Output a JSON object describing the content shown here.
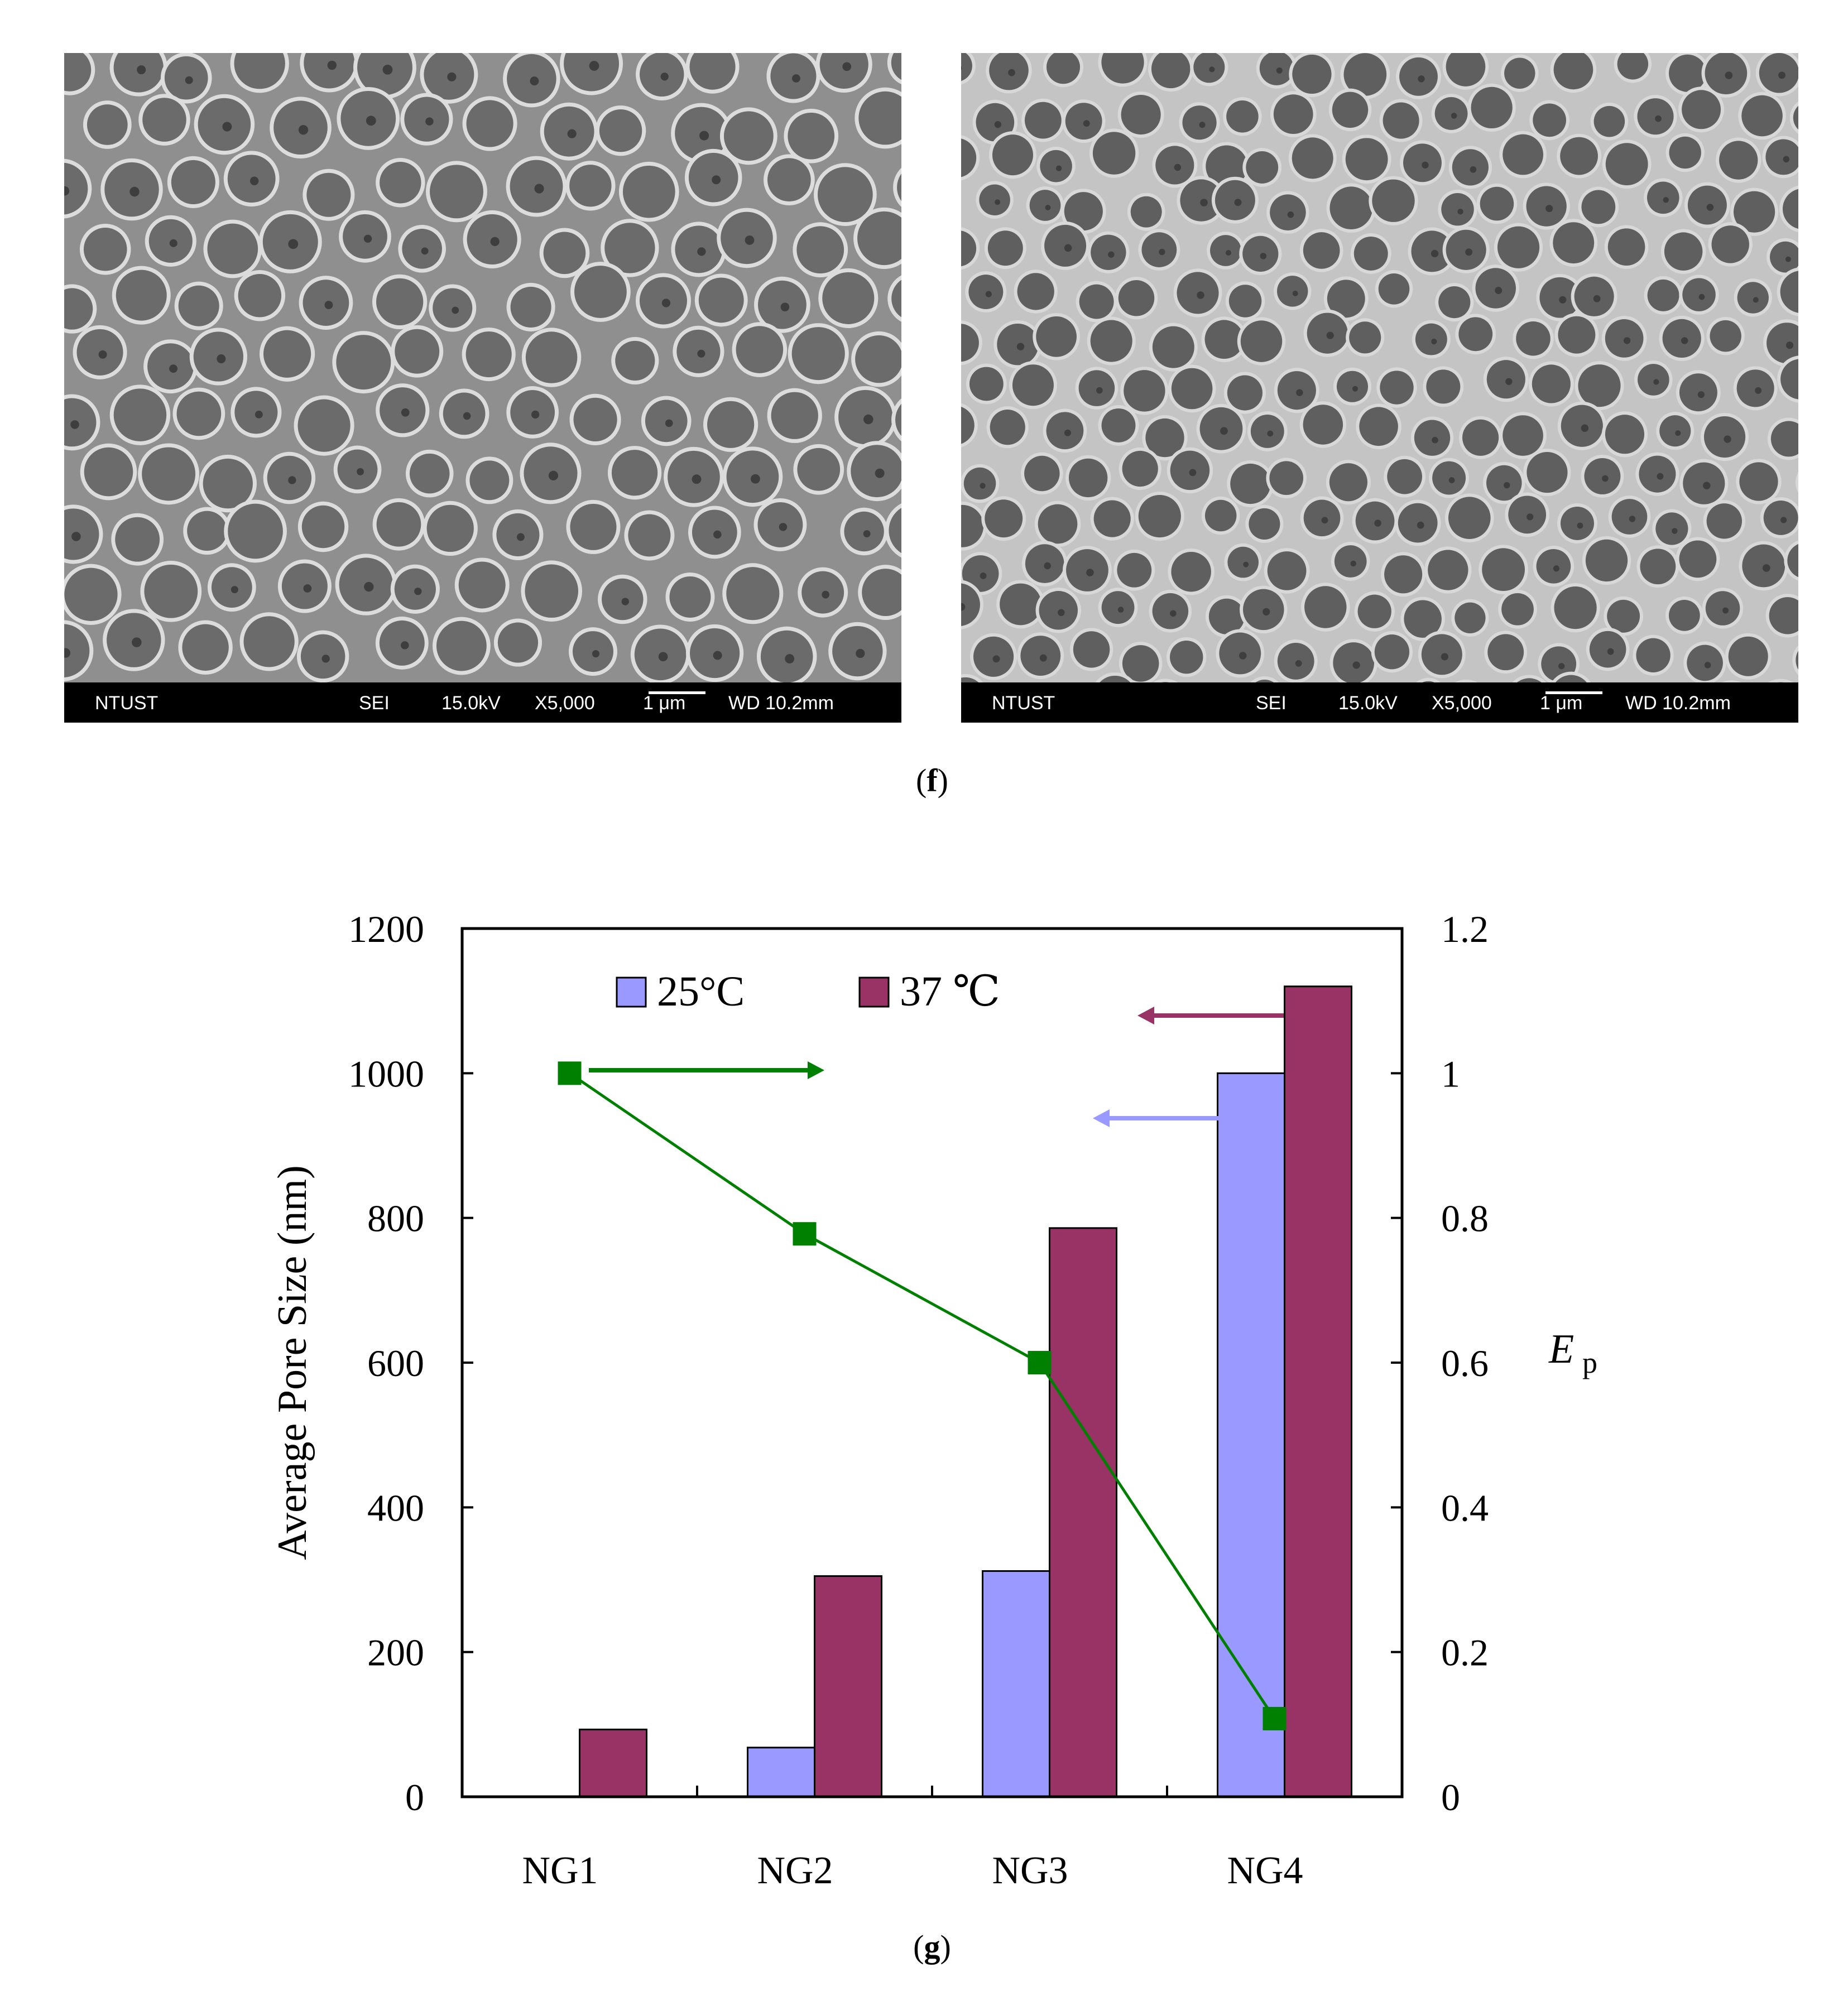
{
  "figure": {
    "panel_f_label": {
      "open": "(",
      "letter": "f",
      "close": ")"
    },
    "panel_g_label": {
      "open": "(",
      "letter": "g",
      "close": ")"
    }
  },
  "sem_images": [
    {
      "lab": "NTUST",
      "mode": "SEI",
      "voltage": "15.0kV",
      "magnification": "X5,000",
      "scale": "1 μm",
      "wd": "WD 10.2mm"
    },
    {
      "lab": "NTUST",
      "mode": "SEI",
      "voltage": "15.0kV",
      "magnification": "X5,000",
      "scale": "1 μm",
      "wd": "WD 10.2mm"
    }
  ],
  "chart_data": {
    "type": "bar",
    "categories": [
      "NG1",
      "NG2",
      "NG3",
      "NG4"
    ],
    "series": [
      {
        "name": "25°C",
        "axis": "left",
        "color": "#9999ff",
        "values": [
          0,
          68,
          312,
          1000
        ]
      },
      {
        "name": "37 ℃",
        "axis": "left",
        "color": "#993366",
        "values": [
          93,
          305,
          786,
          1120
        ]
      }
    ],
    "line_series": {
      "name": "Ep",
      "axis": "right",
      "color": "#008000",
      "values": [
        1.0,
        0.778,
        0.6,
        0.108
      ]
    },
    "ylabel": "Average Pore Size (nm)",
    "ylim": [
      0,
      1200
    ],
    "yticks": [
      "0",
      "200",
      "400",
      "600",
      "800",
      "1000",
      "1200"
    ],
    "y2label_main": "E",
    "y2label_sub": "p",
    "y2lim": [
      0,
      1.2
    ],
    "y2ticks": [
      "0",
      "0.2",
      "0.4",
      "0.6",
      "0.8",
      "1",
      "1.2"
    ],
    "legend": "top-left",
    "grid": false
  }
}
